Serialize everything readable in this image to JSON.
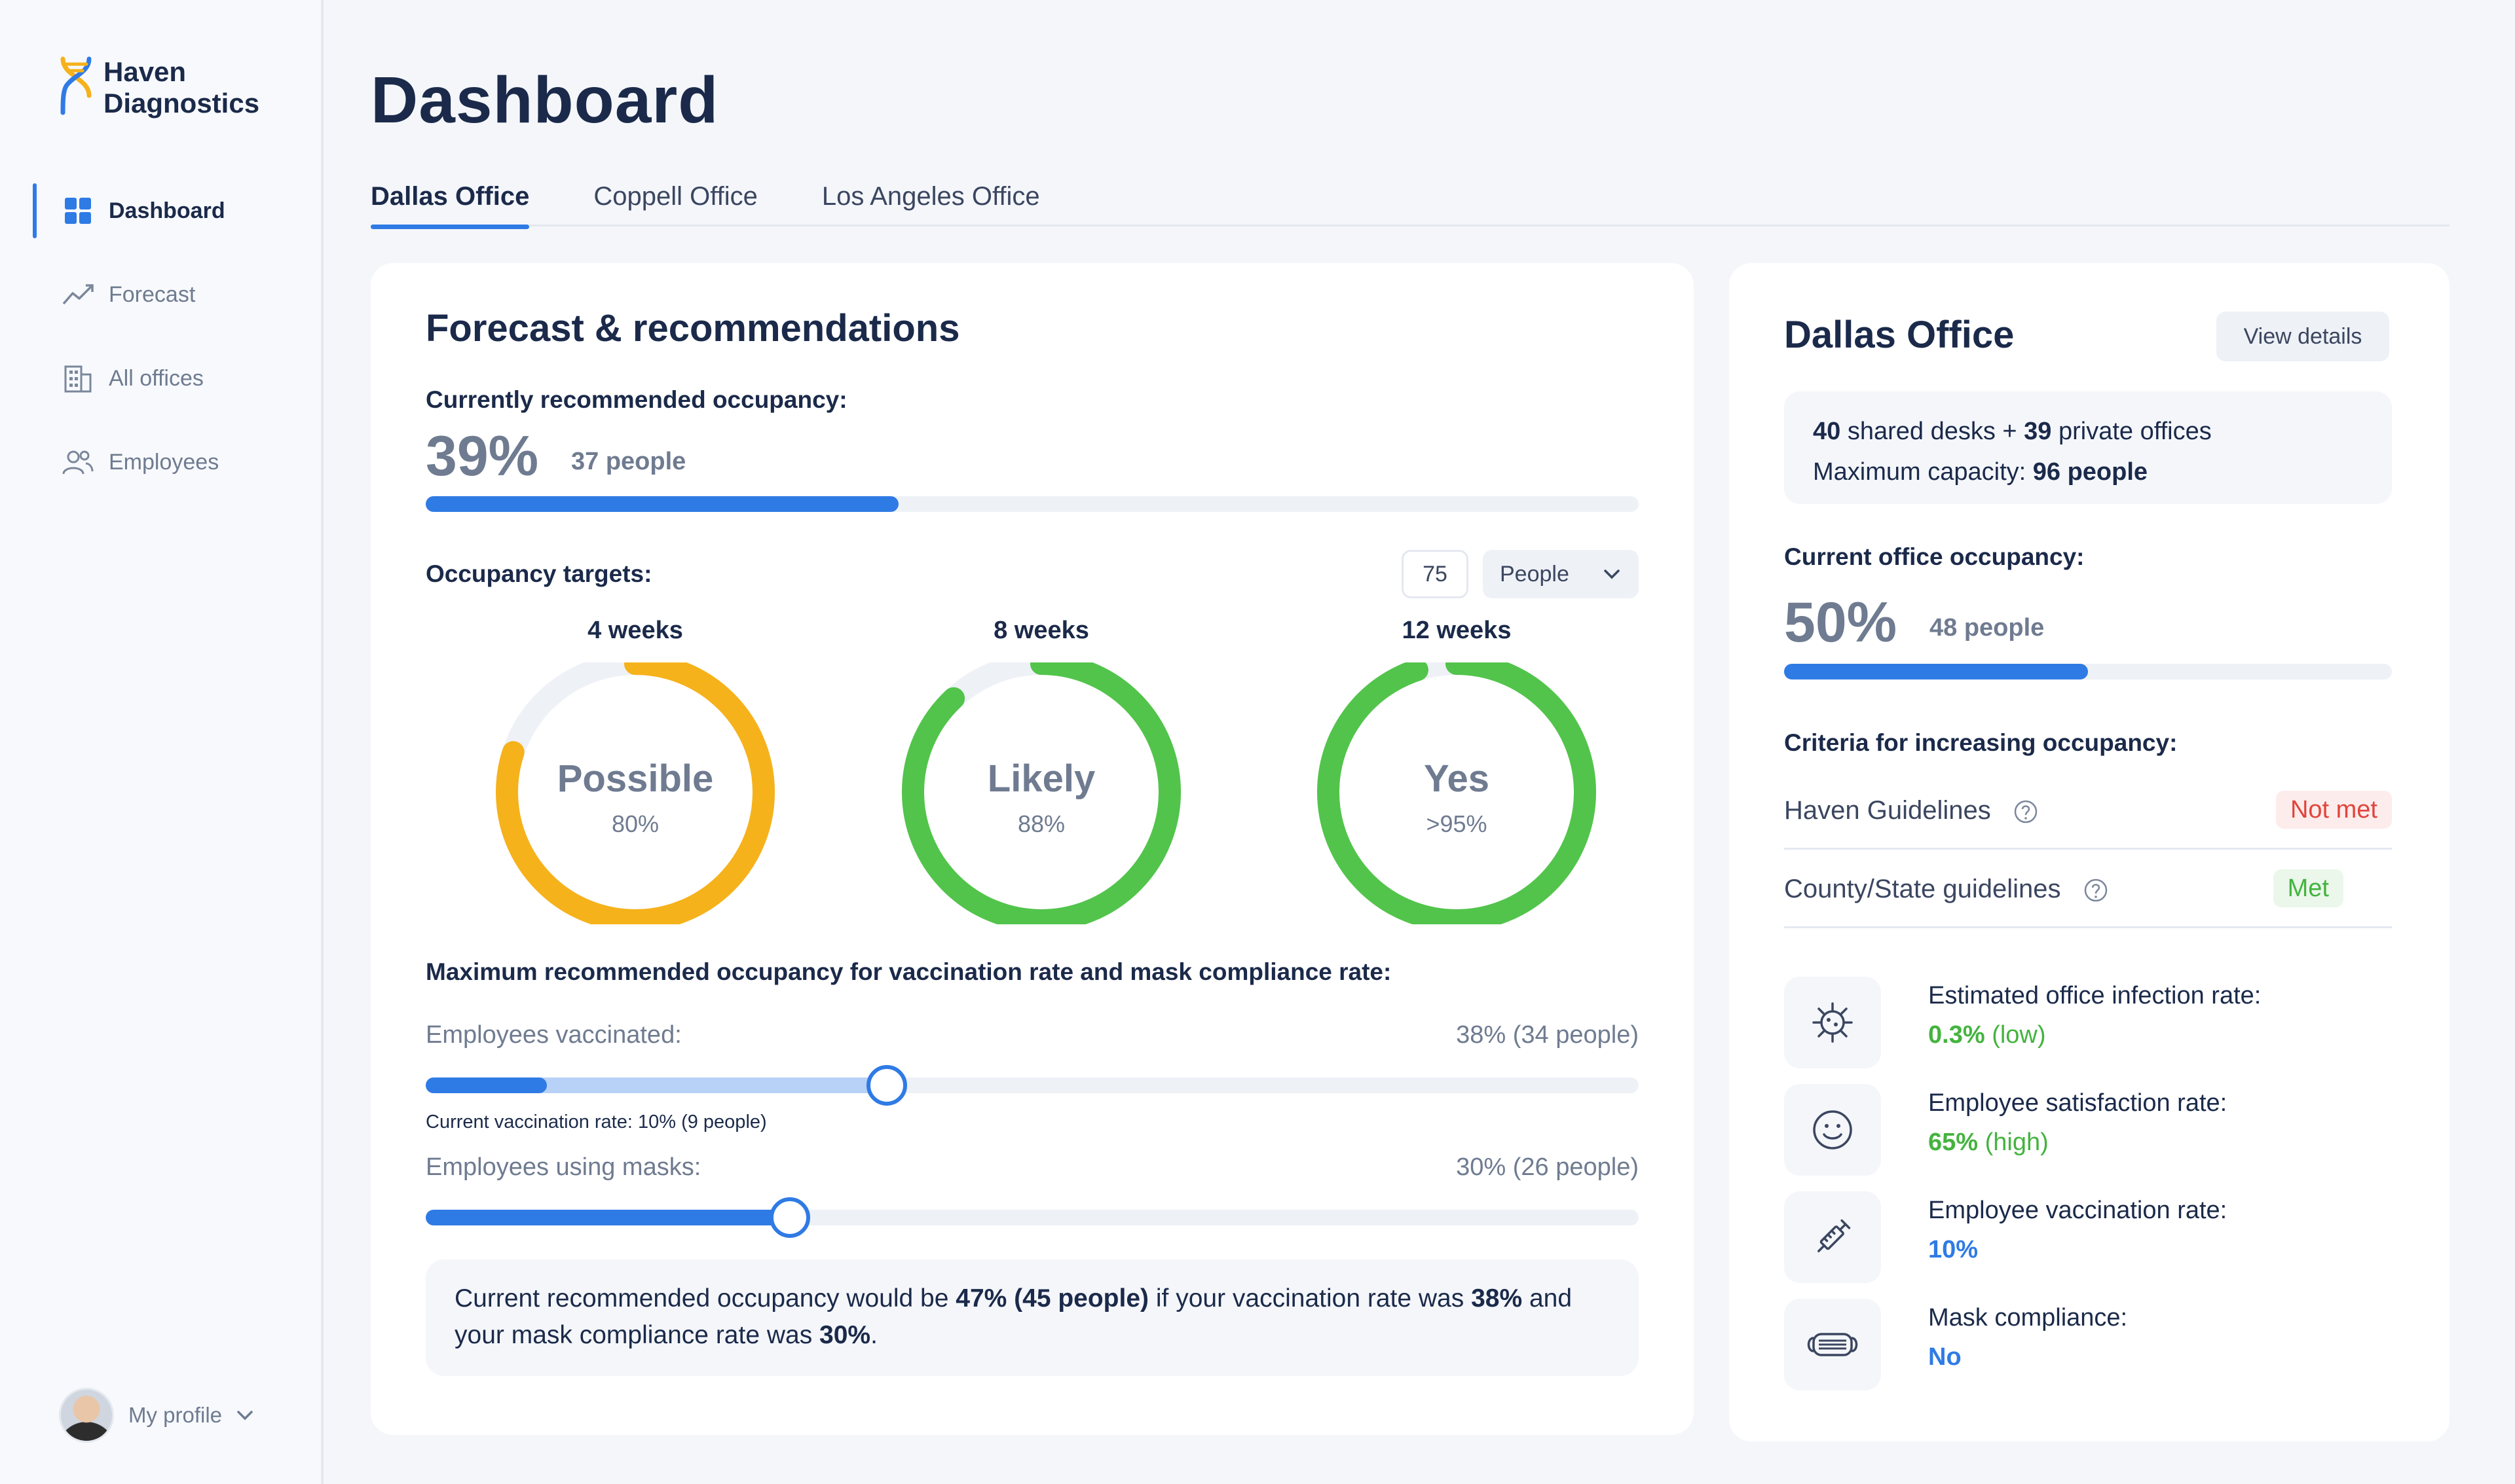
{
  "brand": {
    "line1": "Haven",
    "line2": "Diagnostics"
  },
  "sidebar": {
    "items": [
      {
        "label": "Dashboard",
        "icon": "grid-icon",
        "active": true
      },
      {
        "label": "Forecast",
        "icon": "trend-icon"
      },
      {
        "label": "All offices",
        "icon": "building-icon"
      },
      {
        "label": "Employees",
        "icon": "people-icon"
      }
    ],
    "profile_label": "My profile"
  },
  "header": {
    "title": "Dashboard"
  },
  "tabs": [
    {
      "label": "Dallas Office",
      "active": true
    },
    {
      "label": "Coppell Office"
    },
    {
      "label": "Los Angeles Office"
    }
  ],
  "forecast": {
    "title": "Forecast & recommendations",
    "current_label": "Currently recommended occupancy:",
    "current_pct": "39%",
    "current_people": "37 people",
    "current_fraction": 0.39,
    "targets_label": "Occupancy targets:",
    "target_value": "75",
    "target_unit": "People",
    "rings": [
      {
        "title": "4 weeks",
        "word": "Possible",
        "pct": "80%",
        "fraction": 0.8,
        "color": "#f6b21b"
      },
      {
        "title": "8 weeks",
        "word": "Likely",
        "pct": "88%",
        "fraction": 0.88,
        "color": "#52c44b"
      },
      {
        "title": "12 weeks",
        "word": "Yes",
        "pct": ">95%",
        "fraction": 0.95,
        "color": "#52c44b"
      }
    ],
    "max_label": "Maximum recommended occupancy for vaccination rate and mask compliance rate:",
    "vacc_label": "Employees vaccinated:",
    "vacc_value": "38% (34 people)",
    "vacc_fraction": 0.38,
    "vacc_current_fraction": 0.1,
    "vacc_note": "Current vaccination rate: 10% (9 people)",
    "mask_label": "Employees using masks:",
    "mask_value": "30% (26 people)",
    "mask_fraction": 0.3,
    "callout": {
      "t1": "Current recommended occupancy would be ",
      "b1": "47% (45 people)",
      "t2": " if your vaccination rate was ",
      "b2": "38%",
      "t3": " and your mask compliance rate was ",
      "b3": "30%",
      "t4": "."
    }
  },
  "office": {
    "title": "Dallas Office",
    "view_details": "View details",
    "desks_count": "40",
    "desks_text": " shared desks + ",
    "offices_count": "39",
    "offices_text": " private offices",
    "capacity_label": "Maximum capacity: ",
    "capacity_value": "96 people",
    "occupancy_label": "Current office occupancy:",
    "occupancy_pct": "50%",
    "occupancy_people": "48 people",
    "occupancy_fraction": 0.5,
    "criteria_label": "Criteria for increasing occupancy:",
    "criteria": [
      {
        "label": "Haven Guidelines",
        "status": "Not met"
      },
      {
        "label": "County/State guidelines",
        "status": "Met"
      }
    ],
    "metrics": [
      {
        "label": "Estimated office infection rate:",
        "value": "0.3%",
        "qualifier": "(low)",
        "icon": "virus-icon",
        "color": "#44b33f"
      },
      {
        "label": "Employee satisfaction rate:",
        "value": "65%",
        "qualifier": "(high)",
        "icon": "smiley-icon",
        "color": "#44b33f"
      },
      {
        "label": "Employee vaccination rate:",
        "value": "10%",
        "qualifier": "",
        "icon": "syringe-icon",
        "color": "#2f7be5"
      },
      {
        "label": "Mask compliance:",
        "value": "No",
        "qualifier": "",
        "icon": "mask-icon",
        "color": "#2f7be5"
      }
    ]
  }
}
